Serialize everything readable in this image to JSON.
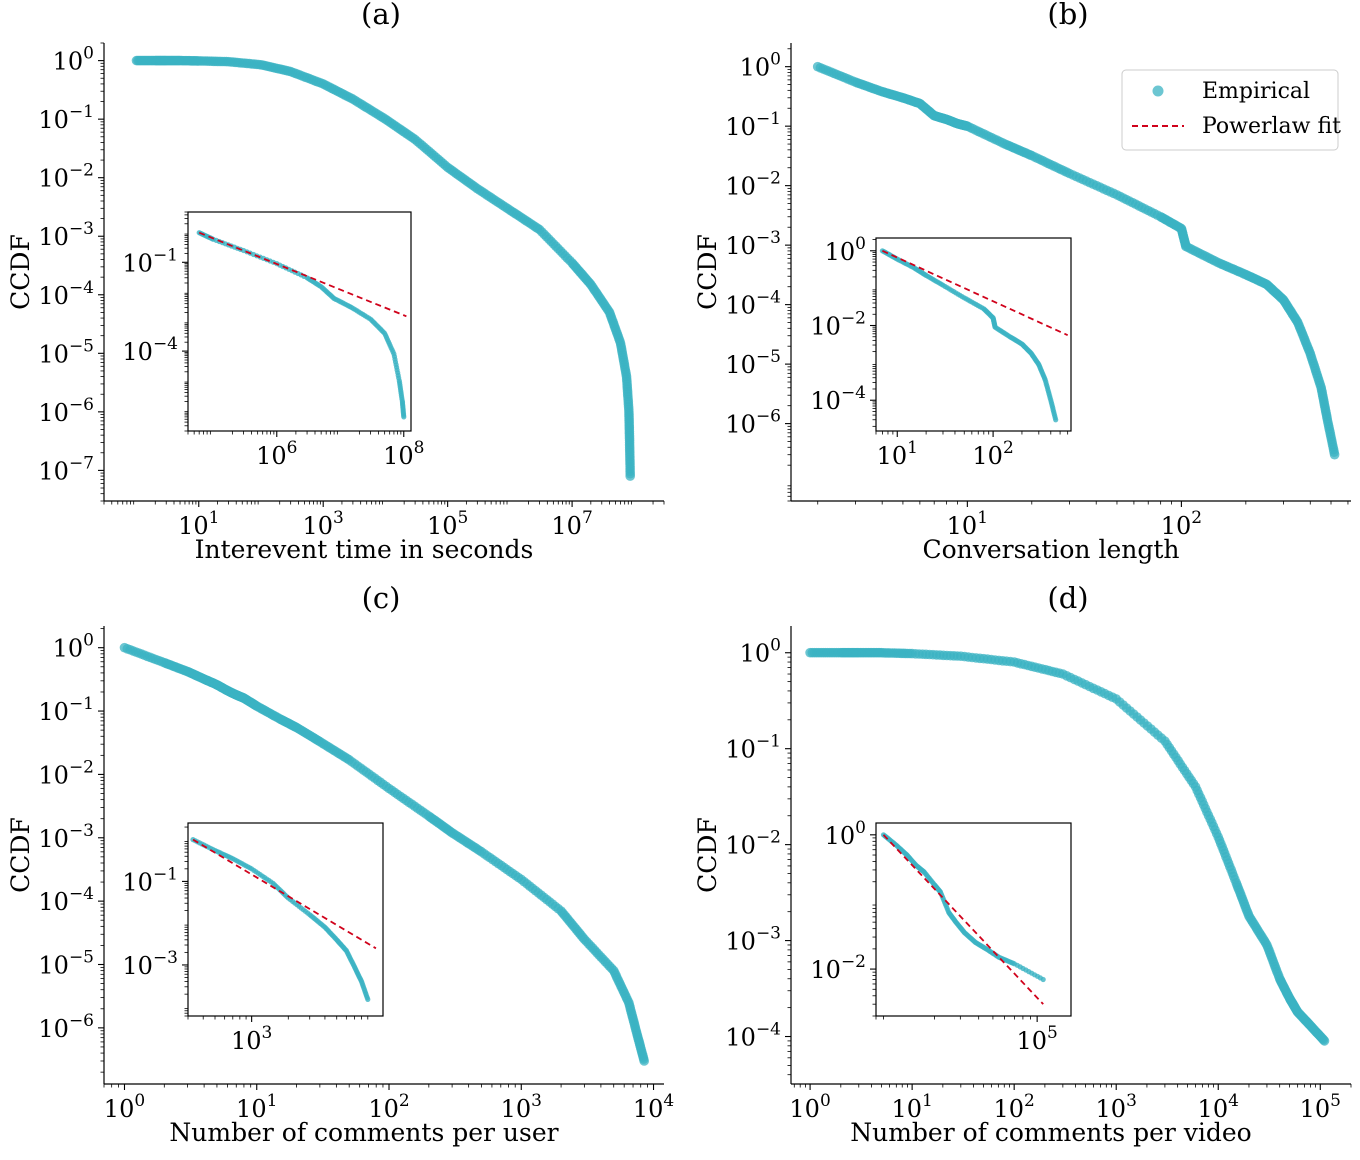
{
  "legend": {
    "empirical": "Empirical",
    "fit": "Powerlaw fit",
    "placement": "upper-right of panel (b)"
  },
  "colors": {
    "empirical": "#3bb3c3",
    "fit": "#d0021b",
    "axis": "#000000"
  },
  "chart_data": [
    {
      "id": "a",
      "type": "scatter",
      "title": "(a)",
      "xlabel": "Interevent time in seconds",
      "ylabel": "CCDF",
      "xscale": "log",
      "yscale": "log",
      "xlim": [
        0.3,
        300000000.0
      ],
      "ylim": [
        3e-08,
        2.0
      ],
      "xticks": [
        {
          "value": 10,
          "base": "10",
          "exp": "1"
        },
        {
          "value": 1000,
          "base": "10",
          "exp": "3"
        },
        {
          "value": 100000,
          "base": "10",
          "exp": "5"
        },
        {
          "value": 10000000,
          "base": "10",
          "exp": "7"
        }
      ],
      "yticks": [
        {
          "value": 1,
          "base": "10",
          "exp": "0"
        },
        {
          "value": 0.1,
          "base": "10",
          "exp": "−1"
        },
        {
          "value": 0.01,
          "base": "10",
          "exp": "−2"
        },
        {
          "value": 0.001,
          "base": "10",
          "exp": "−3"
        },
        {
          "value": 0.0001,
          "base": "10",
          "exp": "−4"
        },
        {
          "value": 1e-05,
          "base": "10",
          "exp": "−5"
        },
        {
          "value": 1e-06,
          "base": "10",
          "exp": "−6"
        },
        {
          "value": 1e-07,
          "base": "10",
          "exp": "−7"
        }
      ],
      "empirical": [
        [
          1,
          1
        ],
        [
          2,
          1
        ],
        [
          3,
          1
        ],
        [
          5,
          1
        ],
        [
          10,
          0.99
        ],
        [
          30,
          0.96
        ],
        [
          100,
          0.85
        ],
        [
          300,
          0.65
        ],
        [
          1000,
          0.4
        ],
        [
          3000,
          0.22
        ],
        [
          10000,
          0.1
        ],
        [
          30000,
          0.045
        ],
        [
          100000,
          0.015
        ],
        [
          300000,
          0.0065
        ],
        [
          1000000,
          0.0028
        ],
        [
          3000000,
          0.0013
        ],
        [
          10000000,
          0.00035
        ],
        [
          20000000,
          0.00015
        ],
        [
          40000000,
          5e-05
        ],
        [
          60000000,
          1.5e-05
        ],
        [
          75000000,
          4e-06
        ],
        [
          82000000,
          1e-06
        ],
        [
          84000000,
          3e-07
        ],
        [
          86000000,
          8e-08
        ]
      ],
      "inset": {
        "xscale": "log",
        "yscale": "log",
        "xlim": [
          40000,
          130000000
        ],
        "ylim": [
          2e-07,
          5
        ],
        "xticks": [
          {
            "value": 1000000,
            "base": "10",
            "exp": "6"
          },
          {
            "value": 100000000,
            "base": "10",
            "exp": "8"
          }
        ],
        "yticks": [
          {
            "value": 0.1,
            "base": "10",
            "exp": "−1"
          },
          {
            "value": 0.0001,
            "base": "10",
            "exp": "−4"
          }
        ],
        "empirical": [
          [
            60000,
            1.0
          ],
          [
            100000,
            0.6
          ],
          [
            300000,
            0.25
          ],
          [
            1000000,
            0.09
          ],
          [
            3000000,
            0.03
          ],
          [
            5000000,
            0.015
          ],
          [
            8000000,
            0.006
          ],
          [
            15000000,
            0.003
          ],
          [
            30000000,
            0.0012
          ],
          [
            50000000,
            0.0004
          ],
          [
            70000000,
            8e-05
          ],
          [
            85000000,
            1e-05
          ],
          [
            95000000,
            2e-06
          ],
          [
            100000000,
            6e-07
          ]
        ],
        "fit": [
          [
            60000,
            1.0
          ],
          [
            110000000,
            0.0015
          ]
        ]
      }
    },
    {
      "id": "b",
      "type": "scatter",
      "title": "(b)",
      "xlabel": "Conversation length",
      "ylabel": "CCDF",
      "xscale": "log",
      "yscale": "log",
      "xlim": [
        1.5,
        620
      ],
      "ylim": [
        5e-08,
        2.5
      ],
      "xticks": [
        {
          "value": 10,
          "base": "10",
          "exp": "1"
        },
        {
          "value": 100,
          "base": "10",
          "exp": "2"
        }
      ],
      "yticks": [
        {
          "value": 1,
          "base": "10",
          "exp": "0"
        },
        {
          "value": 0.1,
          "base": "10",
          "exp": "−1"
        },
        {
          "value": 0.01,
          "base": "10",
          "exp": "−2"
        },
        {
          "value": 0.001,
          "base": "10",
          "exp": "−3"
        },
        {
          "value": 0.0001,
          "base": "10",
          "exp": "−4"
        },
        {
          "value": 1e-05,
          "base": "10",
          "exp": "−5"
        },
        {
          "value": 1e-06,
          "base": "10",
          "exp": "−6"
        }
      ],
      "empirical": [
        [
          2,
          1.0
        ],
        [
          3,
          0.55
        ],
        [
          4,
          0.38
        ],
        [
          5,
          0.3
        ],
        [
          6,
          0.24
        ],
        [
          7,
          0.15
        ],
        [
          8,
          0.13
        ],
        [
          9,
          0.11
        ],
        [
          10,
          0.1
        ],
        [
          15,
          0.05
        ],
        [
          20,
          0.032
        ],
        [
          30,
          0.016
        ],
        [
          50,
          0.007
        ],
        [
          80,
          0.003
        ],
        [
          100,
          0.0019
        ],
        [
          105,
          0.00095
        ],
        [
          150,
          0.0005
        ],
        [
          200,
          0.00032
        ],
        [
          250,
          0.00022
        ],
        [
          300,
          0.00012
        ],
        [
          350,
          5e-05
        ],
        [
          400,
          1.5e-05
        ],
        [
          450,
          4e-06
        ],
        [
          480,
          1.2e-06
        ],
        [
          520,
          3e-07
        ]
      ],
      "inset": {
        "xscale": "log",
        "yscale": "log",
        "xlim": [
          6,
          650
        ],
        "ylim": [
          1.5e-05,
          2.2
        ],
        "xticks": [
          {
            "value": 10,
            "base": "10",
            "exp": "1"
          },
          {
            "value": 100,
            "base": "10",
            "exp": "2"
          }
        ],
        "yticks": [
          {
            "value": 1,
            "base": "10",
            "exp": "0"
          },
          {
            "value": 0.01,
            "base": "10",
            "exp": "−2"
          },
          {
            "value": 0.0001,
            "base": "10",
            "exp": "−4"
          }
        ],
        "empirical": [
          [
            7,
            1.0
          ],
          [
            10,
            0.6
          ],
          [
            15,
            0.35
          ],
          [
            20,
            0.22
          ],
          [
            30,
            0.12
          ],
          [
            50,
            0.055
          ],
          [
            80,
            0.028
          ],
          [
            100,
            0.016
          ],
          [
            105,
            0.009
          ],
          [
            150,
            0.005
          ],
          [
            200,
            0.0032
          ],
          [
            250,
            0.0018
          ],
          [
            300,
            0.0009
          ],
          [
            350,
            0.00035
          ],
          [
            400,
            0.0001
          ],
          [
            450,
            3e-05
          ]
        ],
        "fit": [
          [
            7,
            1.0
          ],
          [
            600,
            0.0055
          ]
        ]
      }
    },
    {
      "id": "c",
      "type": "scatter",
      "title": "(c)",
      "xlabel": "Number of comments per user",
      "ylabel": "CCDF",
      "xscale": "log",
      "yscale": "log",
      "xlim": [
        0.7,
        12000
      ],
      "ylim": [
        1.3e-07,
        2.2
      ],
      "xticks": [
        {
          "value": 1,
          "base": "10",
          "exp": "0"
        },
        {
          "value": 10,
          "base": "10",
          "exp": "1"
        },
        {
          "value": 100,
          "base": "10",
          "exp": "2"
        },
        {
          "value": 1000,
          "base": "10",
          "exp": "3"
        },
        {
          "value": 10000,
          "base": "10",
          "exp": "4"
        }
      ],
      "yticks": [
        {
          "value": 1,
          "base": "10",
          "exp": "0"
        },
        {
          "value": 0.1,
          "base": "10",
          "exp": "−1"
        },
        {
          "value": 0.01,
          "base": "10",
          "exp": "−2"
        },
        {
          "value": 0.001,
          "base": "10",
          "exp": "−3"
        },
        {
          "value": 0.0001,
          "base": "10",
          "exp": "−4"
        },
        {
          "value": 1e-05,
          "base": "10",
          "exp": "−5"
        },
        {
          "value": 1e-06,
          "base": "10",
          "exp": "−6"
        }
      ],
      "empirical": [
        [
          1,
          1.0
        ],
        [
          2,
          0.58
        ],
        [
          3,
          0.42
        ],
        [
          4,
          0.32
        ],
        [
          5,
          0.26
        ],
        [
          6,
          0.21
        ],
        [
          7,
          0.18
        ],
        [
          8,
          0.16
        ],
        [
          10,
          0.12
        ],
        [
          15,
          0.075
        ],
        [
          20,
          0.055
        ],
        [
          30,
          0.033
        ],
        [
          50,
          0.017
        ],
        [
          100,
          0.006
        ],
        [
          200,
          0.0022
        ],
        [
          300,
          0.0012
        ],
        [
          500,
          0.0006
        ],
        [
          1000,
          0.00022
        ],
        [
          2000,
          7e-05
        ],
        [
          3000,
          2.5e-05
        ],
        [
          5000,
          8e-06
        ],
        [
          6500,
          2.5e-06
        ],
        [
          7500,
          8e-07
        ],
        [
          8500,
          3e-07
        ]
      ],
      "inset": {
        "xscale": "log",
        "yscale": "log",
        "xlim": [
          300,
          12000
        ],
        "ylim": [
          6e-05,
          2.5
        ],
        "xticks": [
          {
            "value": 1000,
            "base": "10",
            "exp": "3"
          }
        ],
        "yticks": [
          {
            "value": 0.1,
            "base": "10",
            "exp": "−1"
          },
          {
            "value": 0.001,
            "base": "10",
            "exp": "−3"
          }
        ],
        "empirical": [
          [
            330,
            1.0
          ],
          [
            500,
            0.55
          ],
          [
            700,
            0.35
          ],
          [
            1000,
            0.2
          ],
          [
            1500,
            0.09
          ],
          [
            2000,
            0.04
          ],
          [
            3000,
            0.016
          ],
          [
            4000,
            0.008
          ],
          [
            5000,
            0.004
          ],
          [
            6000,
            0.0022
          ],
          [
            7000,
            0.0009
          ],
          [
            8000,
            0.0004
          ],
          [
            9000,
            0.00015
          ]
        ],
        "fit": [
          [
            330,
            1.0
          ],
          [
            10500,
            0.0025
          ]
        ]
      }
    },
    {
      "id": "d",
      "type": "scatter",
      "title": "(d)",
      "xlabel": "Number of comments per video",
      "ylabel": "CCDF",
      "xscale": "log",
      "yscale": "log",
      "xlim": [
        0.65,
        200000
      ],
      "ylim": [
        3.2e-05,
        1.9
      ],
      "xticks": [
        {
          "value": 1,
          "base": "10",
          "exp": "0"
        },
        {
          "value": 10,
          "base": "10",
          "exp": "1"
        },
        {
          "value": 100,
          "base": "10",
          "exp": "2"
        },
        {
          "value": 1000,
          "base": "10",
          "exp": "3"
        },
        {
          "value": 10000,
          "base": "10",
          "exp": "4"
        },
        {
          "value": 100000,
          "base": "10",
          "exp": "5"
        }
      ],
      "yticks": [
        {
          "value": 1,
          "base": "10",
          "exp": "0"
        },
        {
          "value": 0.1,
          "base": "10",
          "exp": "−1"
        },
        {
          "value": 0.01,
          "base": "10",
          "exp": "−2"
        },
        {
          "value": 0.001,
          "base": "10",
          "exp": "−3"
        },
        {
          "value": 0.0001,
          "base": "10",
          "exp": "−4"
        }
      ],
      "empirical": [
        [
          1,
          1.0
        ],
        [
          2,
          1.0
        ],
        [
          3,
          1.0
        ],
        [
          5,
          1.0
        ],
        [
          10,
          0.98
        ],
        [
          30,
          0.92
        ],
        [
          100,
          0.8
        ],
        [
          300,
          0.6
        ],
        [
          1000,
          0.33
        ],
        [
          3000,
          0.12
        ],
        [
          6000,
          0.04
        ],
        [
          10000,
          0.012
        ],
        [
          15000,
          0.004
        ],
        [
          20000,
          0.0018
        ],
        [
          30000,
          0.0009
        ],
        [
          40000,
          0.0004
        ],
        [
          50000,
          0.00025
        ],
        [
          60000,
          0.00018
        ],
        [
          80000,
          0.00013
        ],
        [
          110000,
          9e-05
        ]
      ],
      "inset": {
        "xscale": "log",
        "yscale": "log",
        "xlim": [
          8000,
          170000
        ],
        "ylim": [
          0.002,
          1.5
        ],
        "xticks": [
          {
            "value": 100000,
            "base": "10",
            "exp": "5"
          }
        ],
        "yticks": [
          {
            "value": 1,
            "base": "10",
            "exp": "0"
          },
          {
            "value": 0.01,
            "base": "10",
            "exp": "−2"
          }
        ],
        "empirical": [
          [
            9000,
            1.0
          ],
          [
            11000,
            0.7
          ],
          [
            13000,
            0.5
          ],
          [
            15000,
            0.35
          ],
          [
            17000,
            0.28
          ],
          [
            20000,
            0.18
          ],
          [
            22000,
            0.14
          ],
          [
            25000,
            0.07
          ],
          [
            28000,
            0.05
          ],
          [
            32000,
            0.035
          ],
          [
            38000,
            0.025
          ],
          [
            45000,
            0.02
          ],
          [
            55000,
            0.015
          ],
          [
            70000,
            0.012
          ],
          [
            110000,
            0.007
          ]
        ],
        "fit": [
          [
            9000,
            1.0
          ],
          [
            110000,
            0.003
          ]
        ]
      }
    }
  ]
}
